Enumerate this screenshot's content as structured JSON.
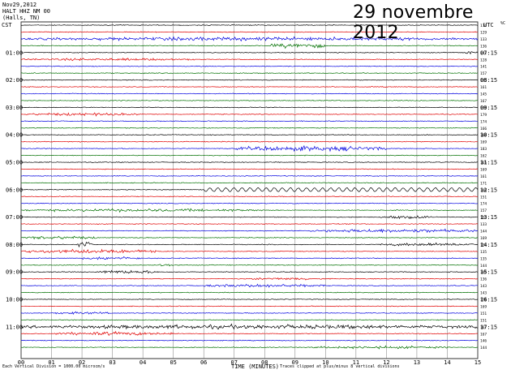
{
  "header": {
    "date": "Nov29,2012",
    "station": "HALT HHZ NM 00",
    "location": "(Halls, TN)",
    "handwritten_title": "29 novembre 2012",
    "left_zone": "CST",
    "right_zone": "UTC",
    "clip_column_label": "%C"
  },
  "footer": {
    "scale_note": "Each Vertical Division = 1000.00 microcm/s",
    "clip_note": "Traces clipped at plus/minus 8 vertical divisions"
  },
  "chart_data": {
    "type": "line",
    "xlabel": "TIME (MINUTES)",
    "x_ticks": [
      "00",
      "01",
      "02",
      "03",
      "04",
      "05",
      "06",
      "07",
      "08",
      "09",
      "10",
      "11",
      "12",
      "13",
      "14",
      "15"
    ],
    "xlim": [
      0,
      15
    ],
    "left_hour_labels": [
      "01:00",
      "02:00",
      "03:00",
      "04:00",
      "05:00",
      "06:00",
      "07:00",
      "08:00",
      "09:00",
      "10:00",
      "11:00"
    ],
    "right_hour_labels": [
      "07:15",
      "08:15",
      "09:15",
      "10:15",
      "11:15",
      "12:15",
      "13:15",
      "14:15",
      "15:15",
      "16:15",
      "17:15"
    ],
    "trace_count": 48,
    "trace_colors": [
      "#000000",
      "#e00000",
      "#0000e0",
      "#007000"
    ],
    "clip_counts": [
      114,
      129,
      133,
      136,
      142,
      128,
      141,
      157,
      165,
      161,
      145,
      167,
      166,
      179,
      174,
      166,
      166,
      169,
      183,
      162,
      165,
      169,
      161,
      171,
      146,
      151,
      174,
      157,
      133,
      133,
      144,
      169,
      134,
      135,
      135,
      144,
      146,
      136,
      143,
      143,
      170,
      169,
      151,
      151,
      167,
      167,
      146,
      144
    ],
    "events": [
      {
        "trace": 2,
        "from": 0.0,
        "to": 15.0,
        "amp": 2.0
      },
      {
        "trace": 3,
        "from": 8.2,
        "to": 10.0,
        "amp": 3.0
      },
      {
        "trace": 4,
        "from": 14.5,
        "to": 15.0,
        "amp": 1.5
      },
      {
        "trace": 5,
        "from": 0.0,
        "to": 6.0,
        "amp": 1.4
      },
      {
        "trace": 13,
        "from": 0.0,
        "to": 4.0,
        "amp": 1.6
      },
      {
        "trace": 18,
        "from": 7.0,
        "to": 12.0,
        "amp": 2.8
      },
      {
        "trace": 24,
        "from": 7.0,
        "to": 15.0,
        "amp": 2.2
      },
      {
        "trace": 27,
        "from": 0.0,
        "to": 8.0,
        "amp": 1.6
      },
      {
        "trace": 28,
        "from": 11.8,
        "to": 13.5,
        "amp": 1.8
      },
      {
        "trace": 30,
        "from": 9.5,
        "to": 15.0,
        "amp": 2.0
      },
      {
        "trace": 31,
        "from": 0.0,
        "to": 2.5,
        "amp": 1.8
      },
      {
        "trace": 32,
        "from": 1.8,
        "to": 2.4,
        "amp": 3.0
      },
      {
        "trace": 32,
        "from": 11.8,
        "to": 15.0,
        "amp": 1.8
      },
      {
        "trace": 33,
        "from": 0.0,
        "to": 4.5,
        "amp": 2.2
      },
      {
        "trace": 34,
        "from": 2.0,
        "to": 4.0,
        "amp": 1.8
      },
      {
        "trace": 35,
        "from": 4.5,
        "to": 5.0,
        "amp": 1.6
      },
      {
        "trace": 36,
        "from": 2.5,
        "to": 4.5,
        "amp": 2.0
      },
      {
        "trace": 37,
        "from": 7.5,
        "to": 10.0,
        "amp": 1.5
      },
      {
        "trace": 38,
        "from": 6.0,
        "to": 10.0,
        "amp": 1.8
      },
      {
        "trace": 42,
        "from": 1.0,
        "to": 3.0,
        "amp": 1.4
      },
      {
        "trace": 44,
        "from": 0.0,
        "to": 15.0,
        "amp": 2.4
      },
      {
        "trace": 45,
        "from": 1.0,
        "to": 5.0,
        "amp": 2.0
      },
      {
        "trace": 47,
        "from": 9.5,
        "to": 14.0,
        "amp": 1.5
      }
    ],
    "wave_trace": {
      "trace": 24,
      "from": 6.0,
      "to": 15.0,
      "amp": 2.8,
      "cycles": 34
    }
  }
}
